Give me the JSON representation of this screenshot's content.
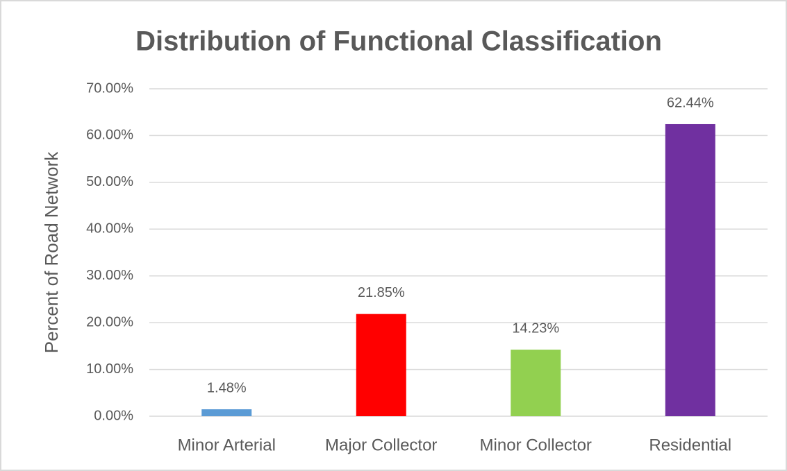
{
  "chart_data": {
    "type": "bar",
    "title": "Distribution of Functional Classification",
    "y_label": "Percent of Road Network",
    "categories": [
      "Minor Arterial",
      "Major Collector",
      "Minor Collector",
      "Residential"
    ],
    "values": [
      1.48,
      21.85,
      14.23,
      62.44
    ],
    "value_labels": [
      "1.48%",
      "21.85%",
      "14.23%",
      "62.44%"
    ],
    "colors": [
      "#5b9bd5",
      "#ff0000",
      "#92d050",
      "#7030a0"
    ],
    "ylim": [
      0,
      70
    ],
    "yticks": [
      {
        "value": 0,
        "label": "0.00%"
      },
      {
        "value": 10,
        "label": "10.00%"
      },
      {
        "value": 20,
        "label": "20.00%"
      },
      {
        "value": 30,
        "label": "30.00%"
      },
      {
        "value": 40,
        "label": "40.00%"
      },
      {
        "value": 50,
        "label": "50.00%"
      },
      {
        "value": 60,
        "label": "60.00%"
      },
      {
        "value": 70,
        "label": "70.00%"
      }
    ],
    "grid": true
  }
}
